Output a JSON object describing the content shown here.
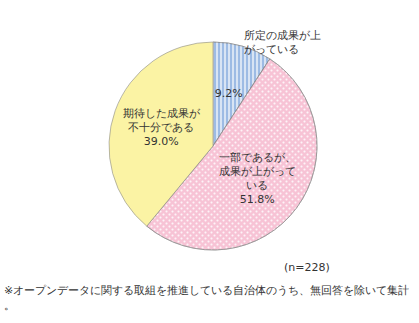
{
  "chart_data": {
    "type": "pie",
    "categories": [
      "所定の成果が上がっている",
      "一部であるが、成果が上がっている",
      "期待した成果が不十分である"
    ],
    "values": [
      9.2,
      51.8,
      39.0
    ],
    "value_labels": [
      "9.2%",
      "51.8%",
      "39.0%"
    ],
    "colors": [
      "#9dbbe4",
      "#f7c3d5",
      "#fbf3a4"
    ],
    "data_labels": true,
    "annotations": [
      "(n=228)",
      "※オープンデータに関する取組を推進している自治体のうち、無回答を除いて集計。"
    ]
  }
}
